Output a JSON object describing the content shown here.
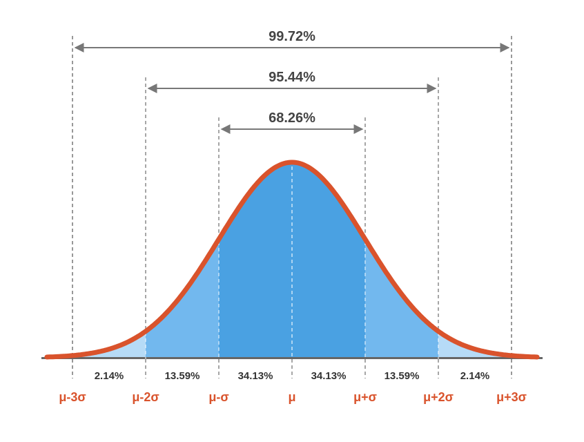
{
  "chart_data": {
    "type": "area",
    "distribution": "normal",
    "x_ticks": [
      "μ-3σ",
      "μ-2σ",
      "μ-σ",
      "μ",
      "μ+σ",
      "μ+2σ",
      "μ+3σ"
    ],
    "x_sigma": [
      -3,
      -2,
      -1,
      0,
      1,
      2,
      3
    ],
    "segments": [
      {
        "from": -3,
        "to": -2,
        "value": 2.14,
        "label": "2.14%"
      },
      {
        "from": -2,
        "to": -1,
        "value": 13.59,
        "label": "13.59%"
      },
      {
        "from": -1,
        "to": 0,
        "value": 34.13,
        "label": "34.13%"
      },
      {
        "from": 0,
        "to": 1,
        "value": 34.13,
        "label": "34.13%"
      },
      {
        "from": 1,
        "to": 2,
        "value": 13.59,
        "label": "13.59%"
      },
      {
        "from": 2,
        "to": 3,
        "value": 2.14,
        "label": "2.14%"
      }
    ],
    "ranges": [
      {
        "sigma": 3,
        "value": 99.72,
        "label": "99.72%"
      },
      {
        "sigma": 2,
        "value": 95.44,
        "label": "95.44%"
      },
      {
        "sigma": 1,
        "value": 68.26,
        "label": "68.26%"
      }
    ],
    "colors": {
      "curve": "#d9532c",
      "inner": "#4aa1e2",
      "middle": "#72b8ee",
      "outer": "#b6dbf7",
      "axis": "#666666",
      "guide": "#777777",
      "range_arrow": "#777777",
      "tick_text": "#d9532c"
    }
  }
}
